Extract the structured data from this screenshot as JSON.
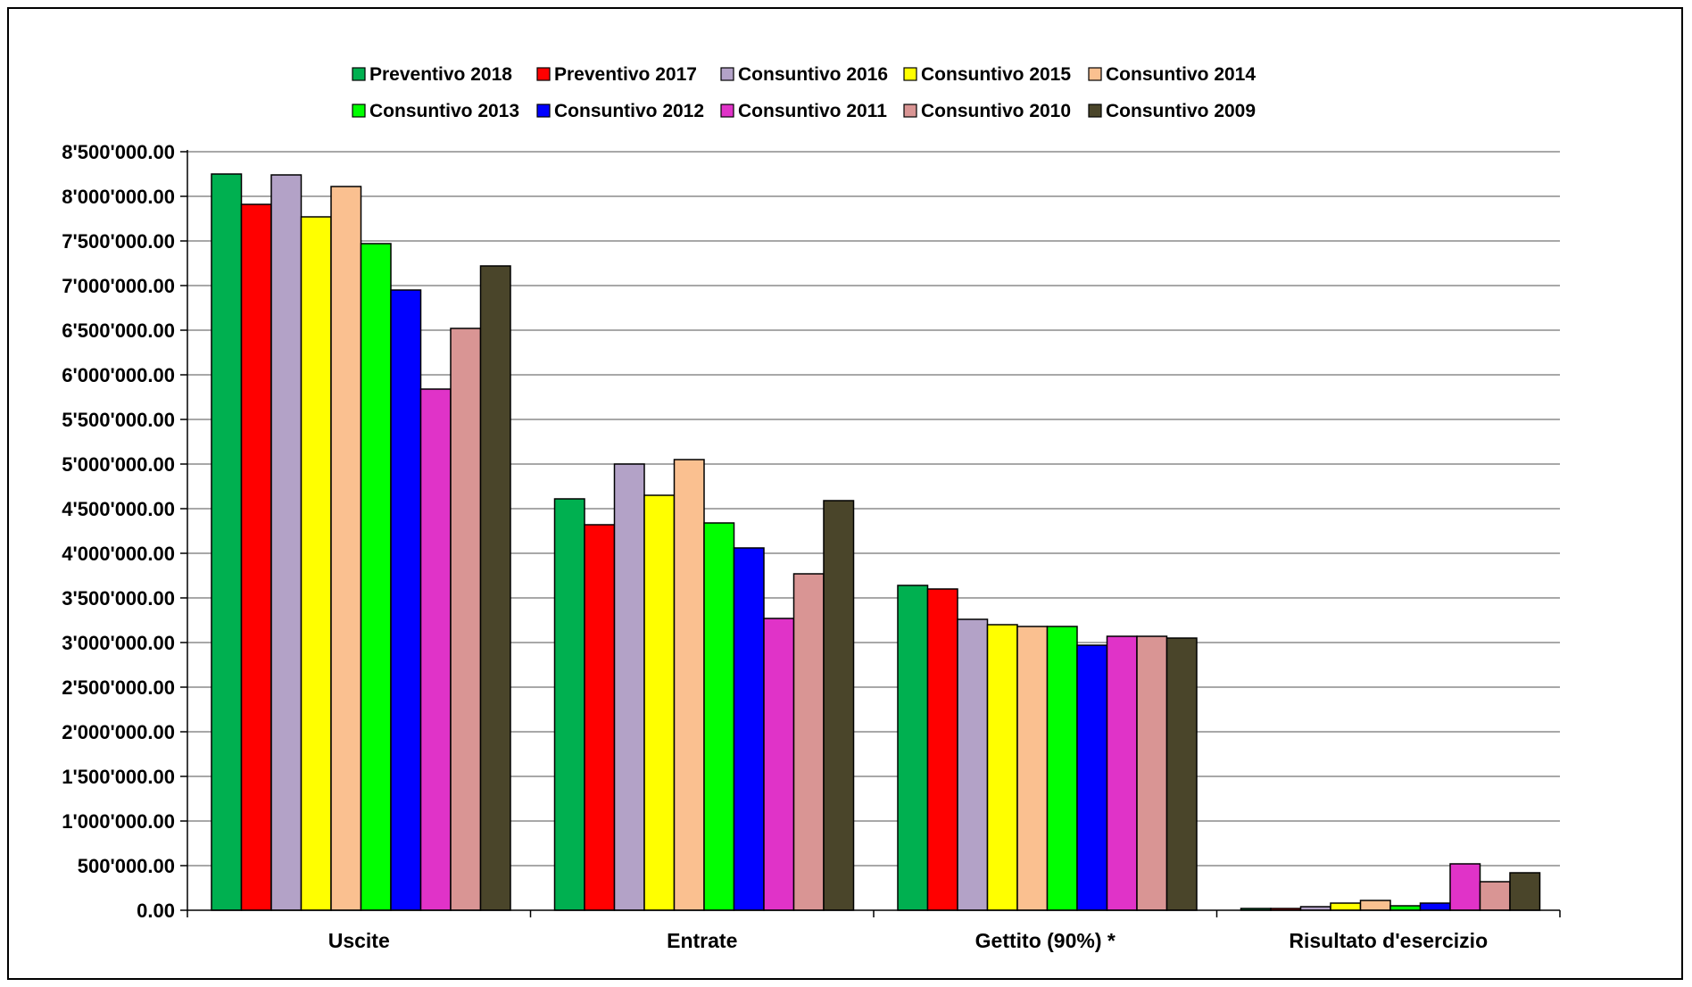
{
  "chart_data": {
    "type": "bar",
    "title": "",
    "xlabel": "",
    "ylabel": "",
    "ylim": [
      0,
      8500000
    ],
    "y_ticks": [
      0,
      500000,
      1000000,
      1500000,
      2000000,
      2500000,
      3000000,
      3500000,
      4000000,
      4500000,
      5000000,
      5500000,
      6000000,
      6500000,
      7000000,
      7500000,
      8000000,
      8500000
    ],
    "y_tick_labels": [
      "0.00",
      "500'000.00",
      "1'000'000.00",
      "1'500'000.00",
      "2'000'000.00",
      "2'500'000.00",
      "3'000'000.00",
      "3'500'000.00",
      "4'000'000.00",
      "4'500'000.00",
      "5'000'000.00",
      "5'500'000.00",
      "6'000'000.00",
      "6'500'000.00",
      "7'000'000.00",
      "7'500'000.00",
      "8'000'000.00",
      "8'500'000.00"
    ],
    "grid": true,
    "legend_position": "top",
    "categories": [
      "Uscite",
      "Entrate",
      "Gettito (90%) *",
      "Risultato d'esercizio"
    ],
    "series": [
      {
        "name": "Preventivo 2018",
        "color": "#00b050",
        "values": [
          8250000,
          4610000,
          3640000,
          20000
        ]
      },
      {
        "name": "Preventivo 2017",
        "color": "#ff0000",
        "values": [
          7910000,
          4320000,
          3600000,
          20000
        ]
      },
      {
        "name": "Consuntivo 2016",
        "color": "#b3a2c7",
        "values": [
          8240000,
          5000000,
          3260000,
          40000
        ]
      },
      {
        "name": "Consuntivo 2015",
        "color": "#ffff00",
        "values": [
          7770000,
          4650000,
          3200000,
          80000
        ]
      },
      {
        "name": "Consuntivo 2014",
        "color": "#fac090",
        "values": [
          8110000,
          5050000,
          3180000,
          110000
        ]
      },
      {
        "name": "Consuntivo 2013",
        "color": "#00ff00",
        "values": [
          7470000,
          4340000,
          3180000,
          50000
        ]
      },
      {
        "name": "Consuntivo 2012",
        "color": "#0000ff",
        "values": [
          6950000,
          4060000,
          2970000,
          80000
        ]
      },
      {
        "name": "Consuntivo 2011",
        "color": "#e033c8",
        "values": [
          5840000,
          3270000,
          3070000,
          520000
        ]
      },
      {
        "name": "Consuntivo 2010",
        "color": "#d99594",
        "values": [
          6520000,
          3770000,
          3070000,
          320000
        ]
      },
      {
        "name": "Consuntivo 2009",
        "color": "#4a452a",
        "values": [
          7220000,
          4590000,
          3050000,
          420000
        ]
      }
    ]
  }
}
